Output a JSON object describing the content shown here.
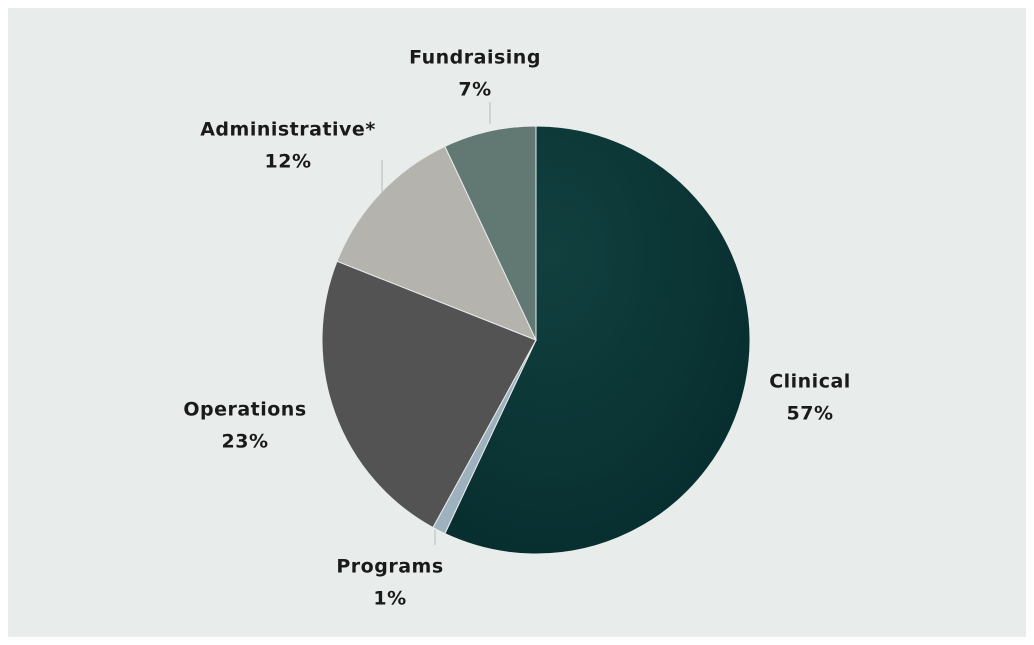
{
  "chart_data": {
    "type": "pie",
    "categories": [
      "Clinical",
      "Programs",
      "Operations",
      "Administrative*",
      "Fundraising"
    ],
    "values": [
      57,
      1,
      23,
      12,
      7
    ],
    "value_labels": [
      "57%",
      "1%",
      "23%",
      "12%",
      "7%"
    ],
    "colors": [
      "#0c383b",
      "#9eb1bf",
      "#535353",
      "#b5b3ad",
      "#627872"
    ]
  }
}
